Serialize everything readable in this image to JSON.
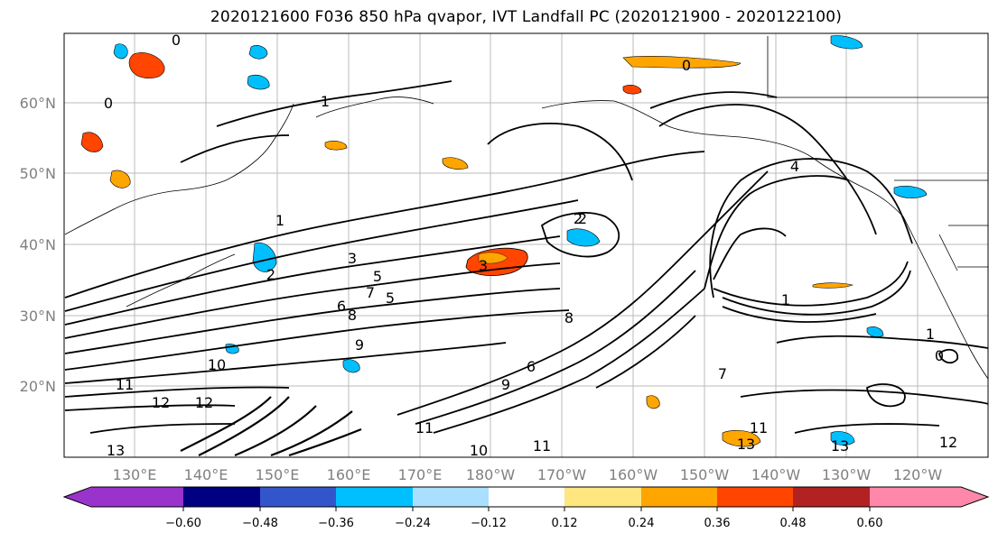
{
  "title": "2020121600 F036 850 hPa qvapor, IVT Landfall PC (2020121900 - 2020122100)",
  "map": {
    "lat_labels": [
      "20°N",
      "30°N",
      "40°N",
      "50°N",
      "60°N"
    ],
    "lon_labels": [
      "130°E",
      "140°E",
      "150°E",
      "160°E",
      "170°E",
      "180°W",
      "170°W",
      "160°W",
      "150°W",
      "140°W",
      "130°W",
      "120°W"
    ],
    "contour_labels": [
      "0",
      "0",
      "0",
      "1",
      "1",
      "1",
      "2",
      "2",
      "3",
      "3",
      "4",
      "5",
      "6",
      "7",
      "8",
      "8",
      "9",
      "10",
      "11",
      "11",
      "12",
      "12",
      "13",
      "13",
      "11",
      "10",
      "9",
      "7",
      "6",
      "5",
      "2",
      "1",
      "0",
      "11",
      "12",
      "13"
    ]
  },
  "colorbar": {
    "ticks": [
      "−0.60",
      "−0.48",
      "−0.36",
      "−0.24",
      "−0.12",
      "0.12",
      "0.24",
      "0.36",
      "0.48",
      "0.60"
    ],
    "colors": [
      "#9933cc",
      "#000080",
      "#3355cc",
      "#00bfff",
      "#aadfff",
      "#ffffff",
      "#ffe680",
      "#ffa500",
      "#ff4500",
      "#b22222",
      "#ff88aa"
    ]
  }
}
